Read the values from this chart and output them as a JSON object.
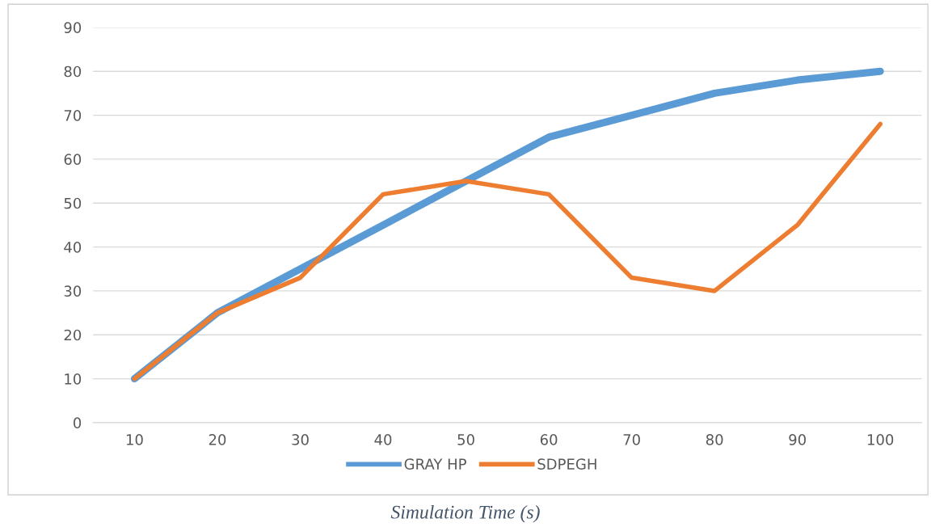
{
  "chart_data": {
    "type": "line",
    "xlabel": "Simulation Time (s)",
    "categories": [
      "10",
      "20",
      "30",
      "40",
      "50",
      "60",
      "70",
      "80",
      "90",
      "100"
    ],
    "series": [
      {
        "name": "GRAY HP",
        "color": "#5b9bd5",
        "values": [
          10,
          25,
          35,
          45,
          55,
          65,
          70,
          75,
          78,
          80
        ]
      },
      {
        "name": "SDPEGH",
        "color": "#ed7d31",
        "values": [
          10,
          25,
          33,
          52,
          55,
          52,
          33,
          30,
          45,
          68
        ]
      }
    ],
    "ylim": [
      0,
      90
    ],
    "yticks": [
      0,
      10,
      20,
      30,
      40,
      50,
      60,
      70,
      80,
      90
    ],
    "grid": "y",
    "legend": "bottom",
    "marker": "none",
    "line_style": "solid"
  }
}
